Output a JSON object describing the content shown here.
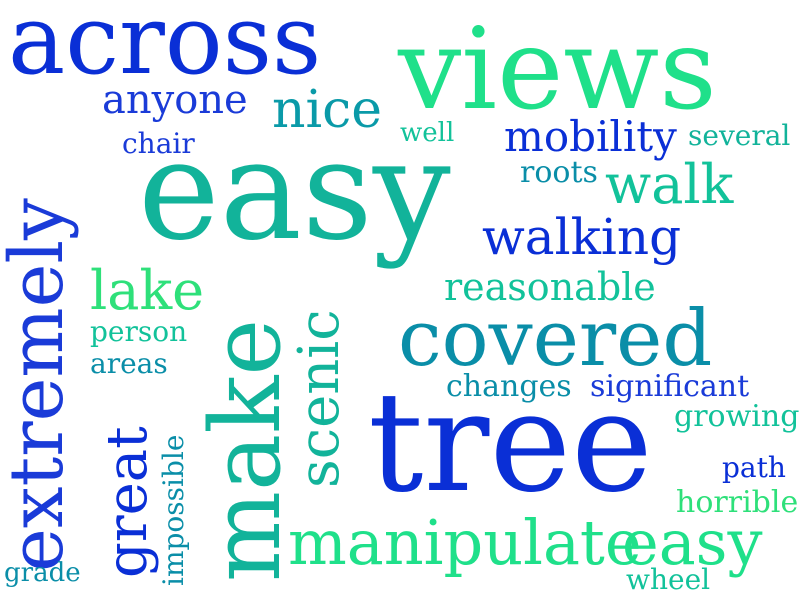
{
  "palette": {
    "blue": "#0a2fd6",
    "deep_blue": "#1a3bd8",
    "teal": "#12b39a",
    "teal_dark": "#0a8ea8",
    "green": "#1fe08a",
    "light_green": "#2ed88c"
  },
  "words": [
    {
      "id": "across",
      "text": "across",
      "color": "#0a2fd6"
    },
    {
      "id": "views",
      "text": "views",
      "color": "#1fe08a"
    },
    {
      "id": "anyone",
      "text": "anyone",
      "color": "#1a3bd8"
    },
    {
      "id": "nice",
      "text": "nice",
      "color": "#0a9aa8"
    },
    {
      "id": "extremely",
      "text": "extremely",
      "color": "#1a3bd8"
    },
    {
      "id": "chair",
      "text": "chair",
      "color": "#1a3bd8"
    },
    {
      "id": "well",
      "text": "well",
      "color": "#12c29a"
    },
    {
      "id": "mobility",
      "text": "mobility",
      "color": "#0a2fd6"
    },
    {
      "id": "several",
      "text": "several",
      "color": "#12b39a"
    },
    {
      "id": "easy",
      "text": "easy",
      "color": "#12b39a"
    },
    {
      "id": "roots",
      "text": "roots",
      "color": "#0a8ea8"
    },
    {
      "id": "walk",
      "text": "walk",
      "color": "#12c29a"
    },
    {
      "id": "walking",
      "text": "walking",
      "color": "#0a2fd6"
    },
    {
      "id": "make",
      "text": "make",
      "color": "#12b39a"
    },
    {
      "id": "lake",
      "text": "lake",
      "color": "#2ee07a"
    },
    {
      "id": "reasonable",
      "text": "reasonable",
      "color": "#12c29a"
    },
    {
      "id": "person",
      "text": "person",
      "color": "#12c29a"
    },
    {
      "id": "scenic",
      "text": "scenic",
      "color": "#12b39a"
    },
    {
      "id": "covered",
      "text": "covered",
      "color": "#0a8ea8"
    },
    {
      "id": "areas",
      "text": "areas",
      "color": "#0a8ea8"
    },
    {
      "id": "changes",
      "text": "changes",
      "color": "#0a8ea8"
    },
    {
      "id": "significant",
      "text": "significant",
      "color": "#1a3bd8"
    },
    {
      "id": "tree",
      "text": "tree",
      "color": "#0a2fd6"
    },
    {
      "id": "growing",
      "text": "growing",
      "color": "#12c29a"
    },
    {
      "id": "great",
      "text": "great",
      "color": "#0a2fd6"
    },
    {
      "id": "impossible",
      "text": "impossible",
      "color": "#0a8ea8"
    },
    {
      "id": "path",
      "text": "path",
      "color": "#0a2fd6"
    },
    {
      "id": "horrible",
      "text": "horrible",
      "color": "#2ee07a"
    },
    {
      "id": "manipulate",
      "text": "manipulate",
      "color": "#1fe08a"
    },
    {
      "id": "easy2",
      "text": "easy",
      "color": "#1fe08a"
    },
    {
      "id": "grade",
      "text": "grade",
      "color": "#0a8ea8"
    },
    {
      "id": "wheel",
      "text": "wheel",
      "color": "#12c29a"
    }
  ]
}
